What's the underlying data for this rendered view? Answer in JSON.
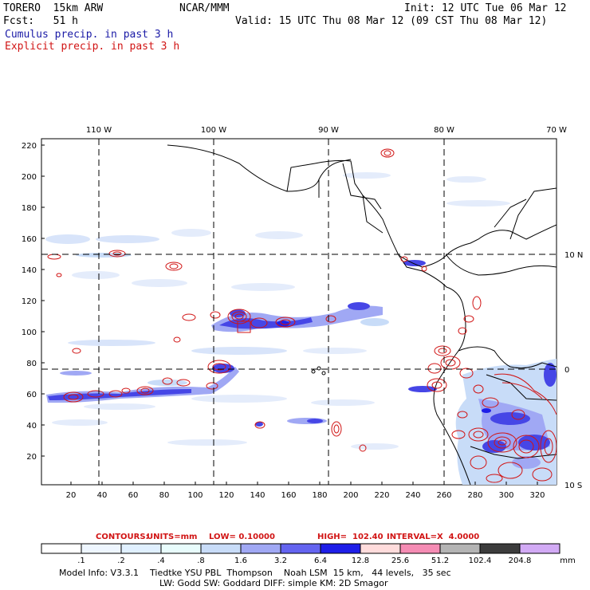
{
  "header": {
    "model": "TORERO  15km ARW",
    "org": "NCAR/MMM",
    "init": "Init: 12 UTC Tue 06 Mar 12",
    "fcst": "Fcst:   51 h",
    "valid": "Valid: 15 UTC Thu 08 Mar 12 (09 CST Thu 08 Mar 12)",
    "line_cumulus": "Cumulus precip. in past 3 h",
    "line_explicit": "Explicit precip. in past 3 h"
  },
  "map": {
    "lon_labels": [
      "110 W",
      "100 W",
      "90 W",
      "80 W",
      "70 W"
    ],
    "lat_labels": [
      "10 N",
      "0",
      "10 S"
    ],
    "y_ticks": [
      "220",
      "200",
      "180",
      "160",
      "140",
      "120",
      "100",
      "80",
      "60",
      "40",
      "20"
    ],
    "x_ticks": [
      "20",
      "40",
      "60",
      "80",
      "100",
      "120",
      "140",
      "160",
      "180",
      "200",
      "220",
      "240",
      "260",
      "280",
      "300",
      "320"
    ]
  },
  "colors": {
    "cumulus": "#1a1aa6",
    "explicit": "#d11414",
    "scale": [
      "#ffffff",
      "#eef6ff",
      "#e0f0ff",
      "#e8fcfc",
      "#c8dcf8",
      "#a0a8f4",
      "#6464f0",
      "#1e1ee8",
      "#ffdcdc",
      "#f58cb4",
      "#b4b4b4",
      "#3c3c3c",
      "#d2aaf5"
    ]
  },
  "contours_line": {
    "title": "CONTOURS:",
    "units": "UNITS=mm",
    "low": "LOW= 0.10000",
    "high": "HIGH=  102.40",
    "interval": "INTERVAL=X  4.0000"
  },
  "colorbar": {
    "labels": [
      ".1",
      ".2",
      ".4",
      ".8",
      "1.6",
      "3.2",
      "6.4",
      "12.8",
      "25.6",
      "51.2",
      "102.4",
      "204.8"
    ],
    "unit": "mm"
  },
  "footer": {
    "line1": "Model Info: V3.3.1    Tiedtke YSU PBL  Thompson    Noah LSM  15 km,   44 levels,   35 sec",
    "line2": "LW: Godd SW: Goddard DIFF: simple KM: 2D Smagor"
  }
}
